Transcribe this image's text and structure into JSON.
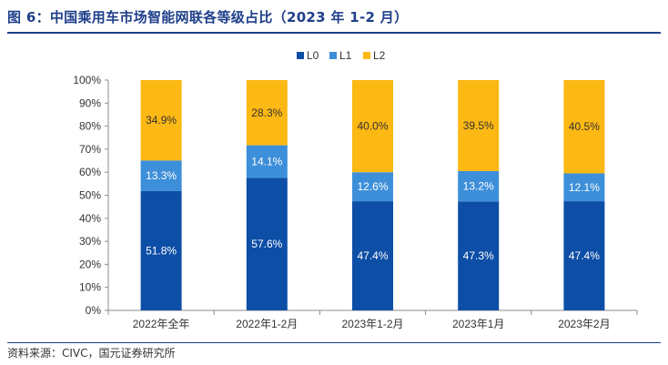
{
  "figure": {
    "title": "图 6：中国乘用车市场智能网联各等级占比（2023 年 1-2 月）",
    "source": "资料来源：CIVC，国元证券研究所"
  },
  "chart_data": {
    "type": "bar",
    "stacked": true,
    "percent": true,
    "categories": [
      "2022年全年",
      "2022年1-2月",
      "2023年1-2月",
      "2023年1月",
      "2023年2月"
    ],
    "series": [
      {
        "name": "L0",
        "color": "#0d4ea6",
        "values": [
          51.8,
          57.6,
          47.4,
          47.3,
          47.4
        ],
        "labels": [
          "51.8%",
          "57.6%",
          "47.4%",
          "47.3%",
          "47.4%"
        ],
        "label_color": "#ffffff"
      },
      {
        "name": "L1",
        "color": "#3d8fd9",
        "values": [
          13.3,
          14.1,
          12.6,
          13.2,
          12.1
        ],
        "labels": [
          "13.3%",
          "14.1%",
          "12.6%",
          "13.2%",
          "12.1%"
        ],
        "label_color": "#ffffff"
      },
      {
        "name": "L2",
        "color": "#fcb813",
        "values": [
          34.9,
          28.3,
          40.0,
          39.5,
          40.5
        ],
        "labels": [
          "34.9%",
          "28.3%",
          "40.0%",
          "39.5%",
          "40.5%"
        ],
        "label_color": "#333333"
      }
    ],
    "y_ticks": [
      "0%",
      "10%",
      "20%",
      "30%",
      "40%",
      "50%",
      "60%",
      "70%",
      "80%",
      "90%",
      "100%"
    ],
    "ylim": [
      0,
      100
    ],
    "grid": false,
    "legend_position": "top-right"
  }
}
